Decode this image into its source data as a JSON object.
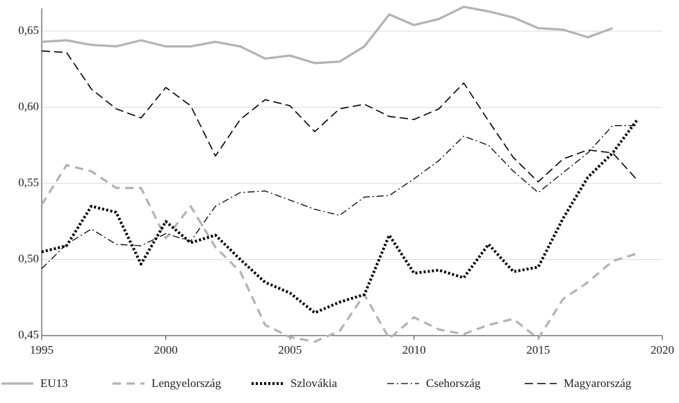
{
  "chart_data": {
    "type": "line",
    "x": [
      1995,
      1996,
      1997,
      1998,
      1999,
      2000,
      2001,
      2002,
      2003,
      2004,
      2005,
      2006,
      2007,
      2008,
      2009,
      2010,
      2011,
      2012,
      2013,
      2014,
      2015,
      2016,
      2017,
      2018,
      2019
    ],
    "series": [
      {
        "name": "EU13",
        "color": "#b3b3b3",
        "dash": "solid",
        "values": [
          0.643,
          0.644,
          0.641,
          0.64,
          0.644,
          0.64,
          0.64,
          0.643,
          0.64,
          0.632,
          0.634,
          0.629,
          0.63,
          0.64,
          0.661,
          0.654,
          0.658,
          0.666,
          0.663,
          0.659,
          0.652,
          0.651,
          0.646,
          0.652,
          null
        ]
      },
      {
        "name": "Lengyelország",
        "color": "#b3b3b3",
        "dash": "dashed",
        "values": [
          0.536,
          0.562,
          0.558,
          0.547,
          0.547,
          0.514,
          0.535,
          0.508,
          0.492,
          0.457,
          0.449,
          0.446,
          0.453,
          0.477,
          0.448,
          0.462,
          0.454,
          0.451,
          0.457,
          0.461,
          0.448,
          0.474,
          0.485,
          0.499,
          0.504
        ]
      },
      {
        "name": "Szlovákia",
        "color": "#000000",
        "dash": "dotted",
        "values": [
          0.505,
          0.509,
          0.535,
          0.531,
          0.497,
          0.525,
          0.511,
          0.516,
          0.5,
          0.485,
          0.478,
          0.465,
          0.472,
          0.477,
          0.516,
          0.491,
          0.493,
          0.488,
          0.51,
          0.492,
          0.495,
          0.527,
          0.554,
          0.57,
          0.592
        ]
      },
      {
        "name": "Csehország",
        "color": "#000000",
        "dash": "dashdot",
        "values": [
          0.494,
          0.51,
          0.52,
          0.51,
          0.509,
          0.517,
          0.512,
          0.535,
          0.544,
          0.545,
          0.539,
          0.533,
          0.529,
          0.541,
          0.542,
          0.553,
          0.565,
          0.581,
          0.575,
          0.558,
          0.544,
          0.557,
          0.57,
          0.588,
          0.588
        ]
      },
      {
        "name": "Magyarország",
        "color": "#000000",
        "dash": "longdash",
        "values": [
          0.637,
          0.636,
          0.612,
          0.599,
          0.593,
          0.613,
          0.601,
          0.568,
          0.592,
          0.605,
          0.601,
          0.584,
          0.599,
          0.602,
          0.594,
          0.592,
          0.599,
          0.616,
          0.591,
          0.567,
          0.551,
          0.566,
          0.572,
          0.57,
          0.552
        ]
      }
    ],
    "xlim": [
      1995,
      2020
    ],
    "xticks": [
      1995,
      2000,
      2005,
      2010,
      2015,
      2020
    ],
    "ylim": [
      0.45,
      0.665
    ],
    "yticks": [
      {
        "value": 0.45,
        "label": "0,45"
      },
      {
        "value": 0.5,
        "label": "0,50"
      },
      {
        "value": 0.55,
        "label": "0,55"
      },
      {
        "value": 0.6,
        "label": "0,60"
      },
      {
        "value": 0.65,
        "label": "0,65"
      }
    ],
    "grid": true,
    "legend": "bottom"
  }
}
